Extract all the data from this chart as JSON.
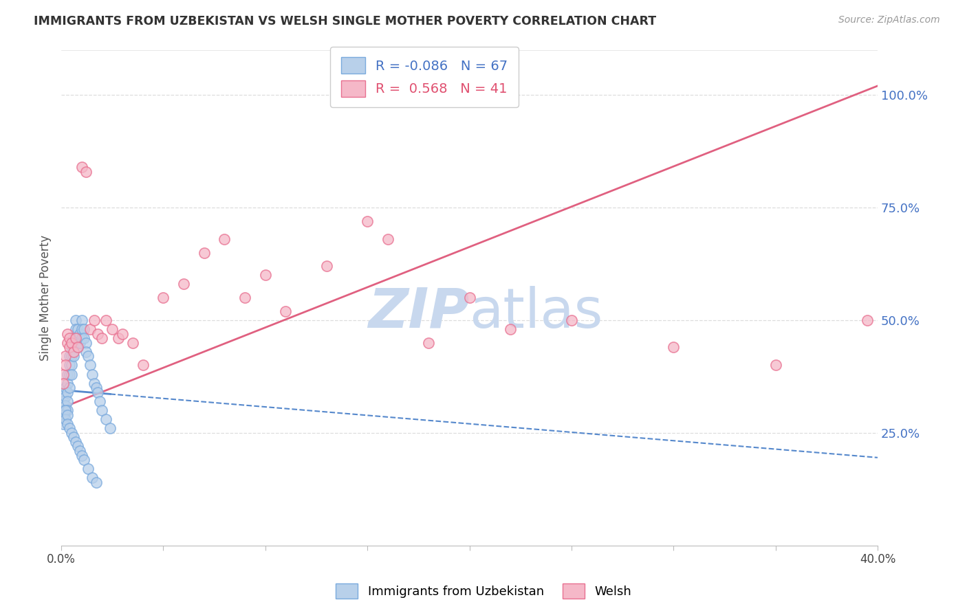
{
  "title": "IMMIGRANTS FROM UZBEKISTAN VS WELSH SINGLE MOTHER POVERTY CORRELATION CHART",
  "source": "Source: ZipAtlas.com",
  "ylabel": "Single Mother Poverty",
  "right_yticks": [
    "100.0%",
    "75.0%",
    "50.0%",
    "25.0%"
  ],
  "right_ytick_vals": [
    1.0,
    0.75,
    0.5,
    0.25
  ],
  "legend_blue_r": "-0.086",
  "legend_blue_n": "67",
  "legend_pink_r": "0.568",
  "legend_pink_n": "41",
  "legend_label_blue": "Immigrants from Uzbekistan",
  "legend_label_pink": "Welsh",
  "blue_color": "#b8d0ea",
  "pink_color": "#f5b8c8",
  "blue_edge_color": "#7aaadd",
  "pink_edge_color": "#e87090",
  "blue_line_color": "#5588cc",
  "pink_line_color": "#e06080",
  "watermark_zip_color": "#c8d8ee",
  "watermark_atlas_color": "#c8d8ee",
  "blue_x": [
    0.001,
    0.001,
    0.001,
    0.001,
    0.002,
    0.002,
    0.002,
    0.002,
    0.002,
    0.003,
    0.003,
    0.003,
    0.003,
    0.003,
    0.004,
    0.004,
    0.004,
    0.004,
    0.005,
    0.005,
    0.005,
    0.005,
    0.006,
    0.006,
    0.006,
    0.007,
    0.007,
    0.007,
    0.008,
    0.008,
    0.008,
    0.009,
    0.009,
    0.01,
    0.01,
    0.01,
    0.011,
    0.011,
    0.012,
    0.012,
    0.013,
    0.014,
    0.015,
    0.016,
    0.017,
    0.018,
    0.019,
    0.02,
    0.022,
    0.024,
    0.001,
    0.001,
    0.002,
    0.002,
    0.003,
    0.003,
    0.004,
    0.005,
    0.006,
    0.007,
    0.008,
    0.009,
    0.01,
    0.011,
    0.013,
    0.015,
    0.017
  ],
  "blue_y": [
    0.34,
    0.32,
    0.3,
    0.29,
    0.35,
    0.33,
    0.31,
    0.3,
    0.28,
    0.38,
    0.36,
    0.34,
    0.32,
    0.3,
    0.42,
    0.4,
    0.38,
    0.35,
    0.44,
    0.42,
    0.4,
    0.38,
    0.46,
    0.44,
    0.42,
    0.5,
    0.48,
    0.46,
    0.48,
    0.46,
    0.44,
    0.47,
    0.45,
    0.5,
    0.48,
    0.46,
    0.48,
    0.46,
    0.45,
    0.43,
    0.42,
    0.4,
    0.38,
    0.36,
    0.35,
    0.34,
    0.32,
    0.3,
    0.28,
    0.26,
    0.29,
    0.27,
    0.3,
    0.28,
    0.29,
    0.27,
    0.26,
    0.25,
    0.24,
    0.23,
    0.22,
    0.21,
    0.2,
    0.19,
    0.17,
    0.15,
    0.14
  ],
  "pink_x": [
    0.001,
    0.001,
    0.002,
    0.002,
    0.003,
    0.003,
    0.004,
    0.004,
    0.005,
    0.006,
    0.007,
    0.008,
    0.01,
    0.012,
    0.014,
    0.016,
    0.018,
    0.02,
    0.022,
    0.025,
    0.028,
    0.03,
    0.035,
    0.04,
    0.05,
    0.06,
    0.07,
    0.08,
    0.09,
    0.1,
    0.11,
    0.13,
    0.15,
    0.16,
    0.18,
    0.2,
    0.22,
    0.25,
    0.3,
    0.35,
    0.395
  ],
  "pink_y": [
    0.38,
    0.36,
    0.42,
    0.4,
    0.47,
    0.45,
    0.46,
    0.44,
    0.45,
    0.43,
    0.46,
    0.44,
    0.84,
    0.83,
    0.48,
    0.5,
    0.47,
    0.46,
    0.5,
    0.48,
    0.46,
    0.47,
    0.45,
    0.4,
    0.55,
    0.58,
    0.65,
    0.68,
    0.55,
    0.6,
    0.52,
    0.62,
    0.72,
    0.68,
    0.45,
    0.55,
    0.48,
    0.5,
    0.44,
    0.4,
    0.5
  ],
  "xlim": [
    0.0,
    0.4
  ],
  "ylim": [
    0.0,
    1.1
  ],
  "xtick_positions": [
    0.0,
    0.05,
    0.1,
    0.15,
    0.2,
    0.25,
    0.3,
    0.35,
    0.4
  ],
  "grid_color": "#dddddd",
  "blue_trend_x0": 0.0,
  "blue_trend_y0": 0.345,
  "blue_trend_x1": 0.4,
  "blue_trend_y1": 0.195,
  "pink_trend_x0": 0.0,
  "pink_trend_y0": 0.305,
  "pink_trend_x1": 0.4,
  "pink_trend_y1": 1.02
}
